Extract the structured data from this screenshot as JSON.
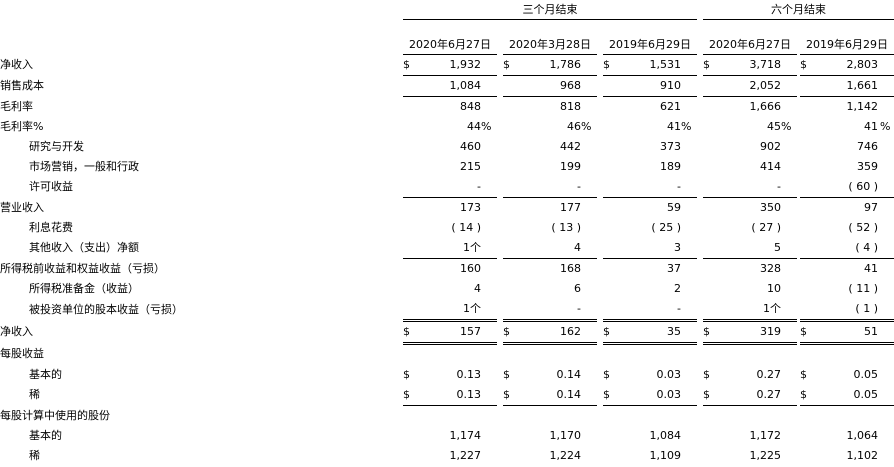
{
  "header": {
    "groups": [
      "三个月结束",
      "六个月结束"
    ],
    "columns": [
      "2020年6月27日",
      "2020年3月28日",
      "2019年6月29日",
      "2020年6月27日",
      "2019年6月29日"
    ]
  },
  "rows": [
    {
      "label": "净收入",
      "cur": true,
      "values": [
        "1,932",
        "1,786",
        "1,531",
        "3,718",
        "2,803"
      ],
      "pcts": [
        "",
        "",
        "",
        "",
        ""
      ]
    },
    {
      "label": "销售成本",
      "values": [
        "1,084",
        "968",
        "910",
        "2,052",
        "1,661"
      ],
      "pcts": [
        "",
        "",
        "",
        "",
        ""
      ]
    },
    {
      "label": "毛利率",
      "values": [
        "848",
        "818",
        "621",
        "1,666",
        "1,142"
      ],
      "pcts": [
        "",
        "",
        "",
        "",
        ""
      ]
    },
    {
      "label": "毛利率%",
      "values": [
        "44",
        "46",
        "41",
        "45",
        "41"
      ],
      "pcts": [
        "%",
        "%",
        "%",
        "%",
        "%"
      ]
    },
    {
      "label": "研究与开发",
      "values": [
        "460",
        "442",
        "373",
        "902",
        "746"
      ],
      "pcts": [
        "",
        "",
        "",
        "",
        ""
      ]
    },
    {
      "label": "市场营销，一般和行政",
      "values": [
        "215",
        "199",
        "189",
        "414",
        "359"
      ],
      "pcts": [
        "",
        "",
        "",
        "",
        ""
      ]
    },
    {
      "label": "许可收益",
      "values": [
        "-",
        "-",
        "-",
        "-",
        "( 60 )"
      ],
      "pcts": [
        "",
        "",
        "",
        "",
        ""
      ]
    },
    {
      "label": "营业收入",
      "values": [
        "173",
        "177",
        "59",
        "350",
        "97"
      ],
      "pcts": [
        "",
        "",
        "",
        "",
        ""
      ]
    },
    {
      "label": "利息花费",
      "values": [
        "( 14 )",
        "( 13 )",
        "( 25 )",
        "( 27 )",
        "( 52 )"
      ],
      "pcts": [
        "",
        "",
        "",
        "",
        ""
      ]
    },
    {
      "label": "其他收入（支出）净额",
      "values": [
        "1个",
        "4",
        "3",
        "5",
        "( 4 )"
      ],
      "pcts": [
        "",
        "",
        "",
        "",
        ""
      ]
    },
    {
      "label": "所得税前收益和权益收益（亏损）",
      "values": [
        "160",
        "168",
        "37",
        "328",
        "41"
      ],
      "pcts": [
        "",
        "",
        "",
        "",
        ""
      ]
    },
    {
      "label": "所得税准备金（收益）",
      "values": [
        "4",
        "6",
        "2",
        "10",
        "( 11 )"
      ],
      "pcts": [
        "",
        "",
        "",
        "",
        ""
      ]
    },
    {
      "label": "被投资单位的股本收益（亏损）",
      "values": [
        "1个",
        "-",
        "-",
        "1个",
        "( 1 )"
      ],
      "pcts": [
        "",
        "",
        "",
        "",
        ""
      ]
    },
    {
      "label": "净收入",
      "cur": true,
      "values": [
        "157",
        "162",
        "35",
        "319",
        "51"
      ],
      "pcts": [
        "",
        "",
        "",
        "",
        ""
      ]
    },
    {
      "label": "每股收益",
      "values": [
        "",
        "",
        "",
        "",
        ""
      ],
      "pcts": [
        "",
        "",
        "",
        "",
        ""
      ]
    },
    {
      "label": "基本的",
      "cur": true,
      "values": [
        "0.13",
        "0.14",
        "0.03",
        "0.27",
        "0.05"
      ],
      "pcts": [
        "",
        "",
        "",
        "",
        ""
      ]
    },
    {
      "label": "稀",
      "cur": true,
      "values": [
        "0.13",
        "0.14",
        "0.03",
        "0.27",
        "0.05"
      ],
      "pcts": [
        "",
        "",
        "",
        "",
        ""
      ]
    },
    {
      "label": "每股计算中使用的股份",
      "values": [
        "",
        "",
        "",
        "",
        ""
      ],
      "pcts": [
        "",
        "",
        "",
        "",
        ""
      ]
    },
    {
      "label": "基本的",
      "values": [
        "1,174",
        "1,170",
        "1,084",
        "1,172",
        "1,064"
      ],
      "pcts": [
        "",
        "",
        "",
        "",
        ""
      ]
    },
    {
      "label": "稀",
      "values": [
        "1,227",
        "1,224",
        "1,109",
        "1,225",
        "1,102"
      ],
      "pcts": [
        "",
        "",
        "",
        "",
        ""
      ]
    }
  ],
  "currency_symbol": "$"
}
